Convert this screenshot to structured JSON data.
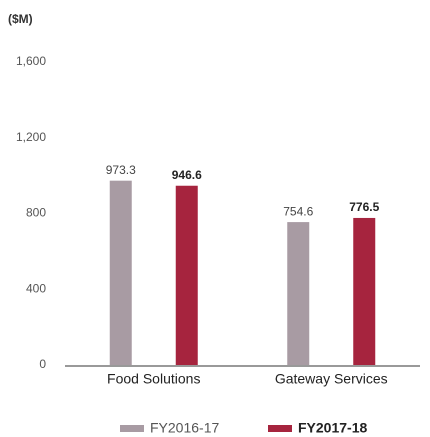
{
  "chart_data": {
    "type": "bar",
    "y_label": "($M)",
    "categories": [
      "Food Solutions",
      "Gateway Services"
    ],
    "series": [
      {
        "name": "FY2016-17",
        "color": "#a89ba3",
        "bold": false,
        "values": [
          973.3,
          754.6
        ]
      },
      {
        "name": "FY2017-18",
        "color": "#a6243e",
        "bold": true,
        "values": [
          946.6,
          776.5
        ]
      }
    ],
    "ylim": [
      0,
      1600
    ],
    "yticks": [
      0,
      400,
      800,
      {
        "value": 1200,
        "label": "1,200"
      },
      {
        "value": 1600,
        "label": "1,600"
      }
    ],
    "grid": false
  }
}
